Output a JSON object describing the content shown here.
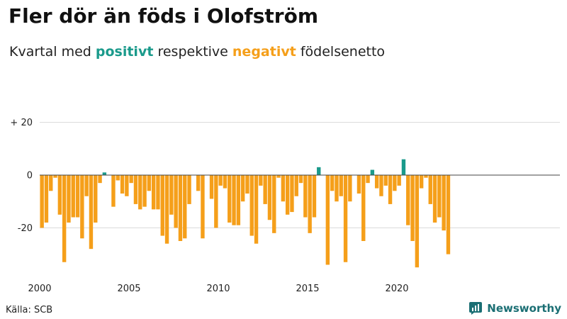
{
  "header": {
    "title": "Fler dör än föds i Olofström",
    "subtitle_prefix": "Kvartal med ",
    "subtitle_positive": "positivt",
    "subtitle_middle": " respektive ",
    "subtitle_negative": "negativt",
    "subtitle_suffix": " födelsenetto"
  },
  "footer": {
    "source": "Källa: SCB",
    "brand": "Newsworthy"
  },
  "colors": {
    "positive": "#1a9a8b",
    "negative": "#f59f1a",
    "grid": "#d9d9d9",
    "zero_line": "#444444",
    "brand": "#1b6f74"
  },
  "chart_data": {
    "type": "bar",
    "title": "Fler dör än föds i Olofström",
    "subtitle": "Kvartal med positivt respektive negativt födelsenetto",
    "xlabel": "",
    "ylabel": "",
    "x_start": 2000,
    "periods_per_year": 4,
    "ylim": [
      -40,
      22
    ],
    "y_ticks": [
      {
        "value": 20,
        "label": "+ 20"
      },
      {
        "value": 0,
        "label": "0"
      },
      {
        "value": -20,
        "label": "-20"
      }
    ],
    "x_ticks": [
      {
        "value": 2000,
        "label": "2000"
      },
      {
        "value": 2005,
        "label": "2005"
      },
      {
        "value": 2010,
        "label": "2010"
      },
      {
        "value": 2015,
        "label": "2015"
      },
      {
        "value": 2020,
        "label": "2020"
      }
    ],
    "values": [
      -20,
      -18,
      -6,
      -1,
      -15,
      -33,
      -18,
      -16,
      -16,
      -24,
      -8,
      -28,
      -18,
      -3,
      1,
      0,
      -12,
      -2,
      -7,
      -8,
      -3,
      -11,
      -13,
      -12,
      -6,
      -13,
      -13,
      -23,
      -26,
      -15,
      -20,
      -25,
      -24,
      -11,
      0,
      -6,
      -24,
      0,
      -9,
      -20,
      -4,
      -5,
      -18,
      -19,
      -19,
      -10,
      -7,
      -23,
      -26,
      -4,
      -11,
      -17,
      -22,
      -1,
      -10,
      -15,
      -14,
      -8,
      -3,
      -16,
      -22,
      -16,
      3,
      0,
      -34,
      -6,
      -10,
      -8,
      -33,
      -10,
      0,
      -7,
      -25,
      -3,
      2,
      -5,
      -8,
      -4,
      -11,
      -6,
      -4,
      6,
      -19,
      -25,
      -35,
      -5,
      -1,
      -11,
      -18,
      -16,
      -21,
      -30
    ]
  }
}
